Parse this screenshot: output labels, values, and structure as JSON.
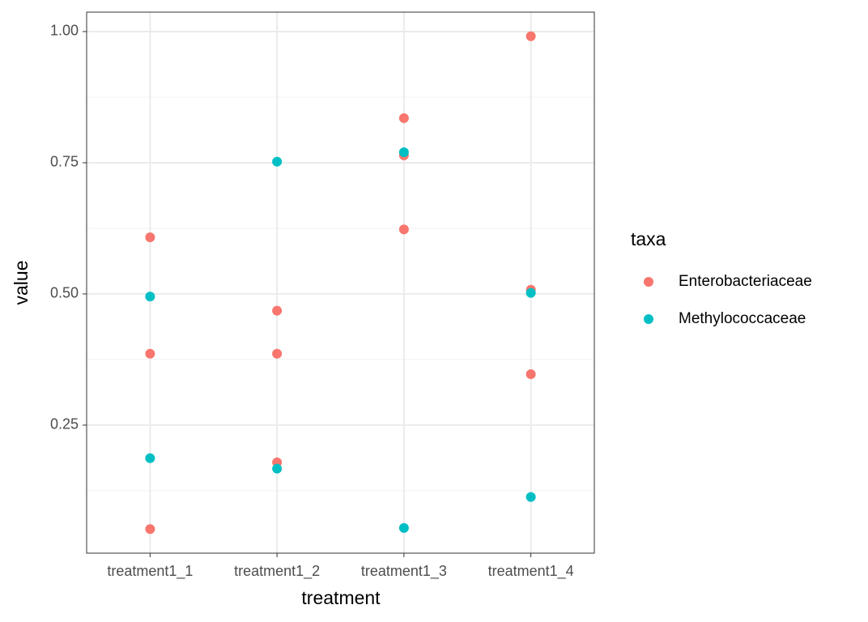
{
  "chart_data": {
    "type": "scatter",
    "x_label": "treatment",
    "y_label": "value",
    "categories": [
      "treatment1_1",
      "treatment1_2",
      "treatment1_3",
      "treatment1_4"
    ],
    "legend_title": "taxa",
    "series": [
      {
        "name": "Enterobacteriaceae",
        "color": "#F8766D",
        "x": [
          "treatment1_1",
          "treatment1_1",
          "treatment1_1",
          "treatment1_2",
          "treatment1_2",
          "treatment1_2",
          "treatment1_3",
          "treatment1_3",
          "treatment1_3",
          "treatment1_4",
          "treatment1_4",
          "treatment1_4"
        ],
        "values": [
          0.608,
          0.386,
          0.052,
          0.468,
          0.386,
          0.179,
          0.835,
          0.764,
          0.623,
          0.991,
          0.508,
          0.347
        ]
      },
      {
        "name": "Methylococcaceae",
        "color": "#00BFC4",
        "x": [
          "treatment1_1",
          "treatment1_1",
          "treatment1_2",
          "treatment1_2",
          "treatment1_3",
          "treatment1_3",
          "treatment1_4",
          "treatment1_4"
        ],
        "values": [
          0.495,
          0.187,
          0.752,
          0.167,
          0.77,
          0.054,
          0.502,
          0.113
        ]
      }
    ],
    "ylim": [
      0.006,
      1.037
    ],
    "yticks": [
      {
        "value": 0.25,
        "label": "0.25"
      },
      {
        "value": 0.5,
        "label": "0.50"
      },
      {
        "value": 0.75,
        "label": "0.75"
      },
      {
        "value": 1,
        "label": "1.00"
      }
    ],
    "grid": true
  }
}
